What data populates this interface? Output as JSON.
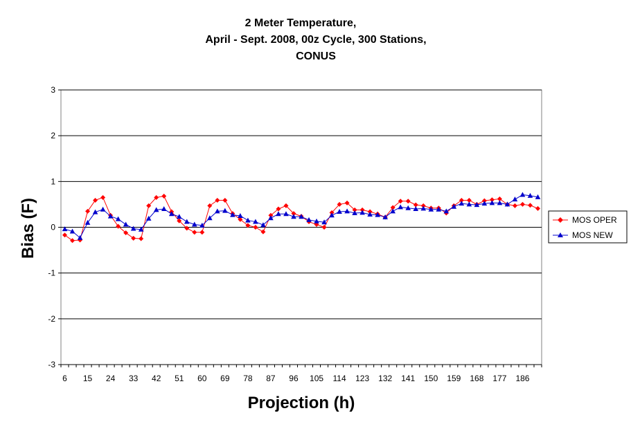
{
  "chart_data": {
    "type": "line",
    "title": [
      "2 Meter Temperature,",
      "April - Sept. 2008, 00z Cycle, 300 Stations,",
      "CONUS"
    ],
    "xlabel": "Projection (h)",
    "ylabel": "Bias (F)",
    "ylim": [
      -3,
      3
    ],
    "yticks": [
      3,
      2,
      1,
      0,
      -1,
      -2,
      -3
    ],
    "xtick_labels": [
      "6",
      "15",
      "24",
      "33",
      "42",
      "51",
      "60",
      "69",
      "78",
      "87",
      "96",
      "105",
      "114",
      "123",
      "132",
      "141",
      "150",
      "159",
      "168",
      "177",
      "186"
    ],
    "grid": "horizontal",
    "legend_position": "right",
    "x": [
      6,
      9,
      12,
      15,
      18,
      21,
      24,
      27,
      30,
      33,
      36,
      39,
      42,
      45,
      48,
      51,
      54,
      57,
      60,
      63,
      66,
      69,
      72,
      75,
      78,
      81,
      84,
      87,
      90,
      93,
      96,
      99,
      102,
      105,
      108,
      111,
      114,
      117,
      120,
      123,
      126,
      129,
      132,
      135,
      138,
      141,
      144,
      147,
      150,
      153,
      156,
      159,
      162,
      165,
      168,
      171,
      174,
      177,
      180,
      183,
      186,
      189,
      192
    ],
    "series": [
      {
        "name": "MOS OPER",
        "color": "#ff0000",
        "marker": "diamond",
        "values": [
          -0.17,
          -0.29,
          -0.28,
          0.35,
          0.59,
          0.65,
          0.26,
          0.02,
          -0.12,
          -0.24,
          -0.25,
          0.47,
          0.65,
          0.68,
          0.34,
          0.14,
          -0.02,
          -0.11,
          -0.11,
          0.47,
          0.59,
          0.59,
          0.3,
          0.17,
          0.04,
          0.0,
          -0.1,
          0.26,
          0.4,
          0.47,
          0.3,
          0.24,
          0.12,
          0.06,
          0.0,
          0.32,
          0.5,
          0.53,
          0.38,
          0.38,
          0.34,
          0.29,
          0.22,
          0.43,
          0.57,
          0.57,
          0.49,
          0.47,
          0.42,
          0.42,
          0.31,
          0.47,
          0.59,
          0.59,
          0.5,
          0.58,
          0.6,
          0.62,
          0.5,
          0.47,
          0.5,
          0.48,
          0.41
        ]
      },
      {
        "name": "MOS NEW",
        "color": "#0000cc",
        "marker": "triangle",
        "values": [
          -0.04,
          -0.09,
          -0.23,
          0.1,
          0.33,
          0.39,
          0.24,
          0.18,
          0.06,
          -0.03,
          -0.05,
          0.19,
          0.38,
          0.4,
          0.29,
          0.23,
          0.12,
          0.06,
          0.04,
          0.2,
          0.35,
          0.36,
          0.27,
          0.25,
          0.15,
          0.12,
          0.05,
          0.2,
          0.29,
          0.29,
          0.23,
          0.23,
          0.16,
          0.13,
          0.11,
          0.26,
          0.34,
          0.35,
          0.31,
          0.32,
          0.28,
          0.27,
          0.22,
          0.35,
          0.44,
          0.42,
          0.4,
          0.41,
          0.39,
          0.39,
          0.35,
          0.45,
          0.52,
          0.5,
          0.49,
          0.52,
          0.53,
          0.53,
          0.5,
          0.61,
          0.71,
          0.69,
          0.66
        ]
      }
    ]
  }
}
